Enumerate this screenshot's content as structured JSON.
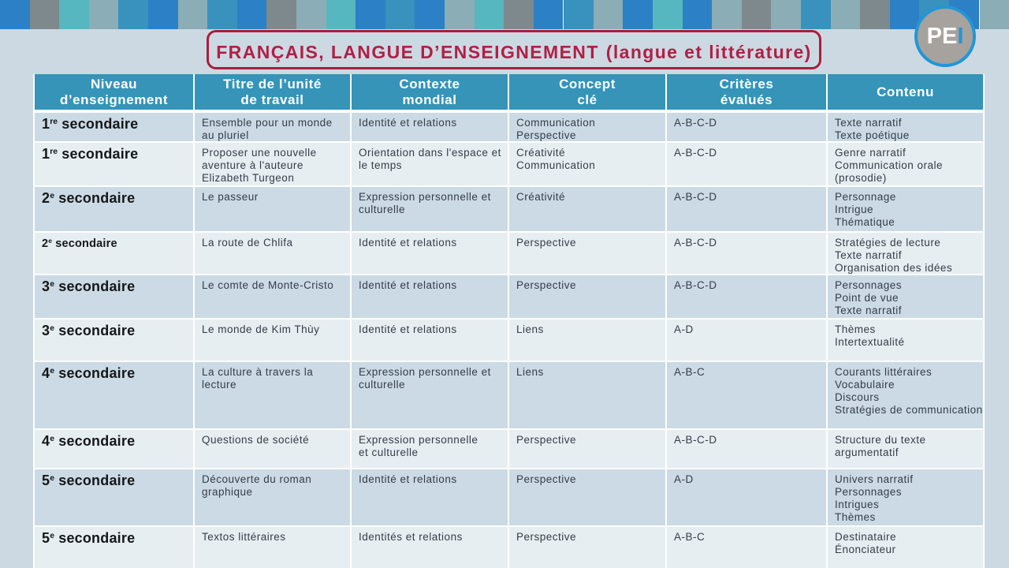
{
  "badge": {
    "pe": "PE",
    "i": "I",
    "circle_color": "#a6a29e",
    "ring_color": "#2196d8"
  },
  "title": {
    "main": "FRANÇAIS, LANGUE D’ENSEIGNEMENT",
    "paren": "(langue et littérature)",
    "text_color": "#b01f46",
    "border_color": "#a81e3e"
  },
  "top_strip": {
    "palette": {
      "blue": "#2b80c6",
      "gray": "#7d898c",
      "teal": "#56b7c0",
      "grayblue": "#8badb5",
      "steel": "#3992bd"
    },
    "squares": [
      "blue",
      "gray",
      "teal",
      "grayblue",
      "steel",
      "blue",
      "grayblue",
      "steel",
      "blue",
      "gray",
      "grayblue",
      "teal",
      "blue",
      "steel",
      "blue",
      "grayblue",
      "teal",
      "gray",
      "blue",
      "steel",
      "grayblue",
      "blue",
      "teal",
      "blue",
      "grayblue",
      "gray",
      "grayblue",
      "steel",
      "grayblue",
      "gray",
      "blue",
      "steel",
      "blue",
      "grayblue"
    ]
  },
  "table": {
    "header_bg": "#3594b8",
    "row_dark_bg": "#cbdae4",
    "row_light_bg": "#e7eef2",
    "headers": [
      {
        "lines": [
          "Niveau",
          "d’enseignement"
        ]
      },
      {
        "lines": [
          "Titre de l’unité",
          "de travail"
        ]
      },
      {
        "lines": [
          "Contexte",
          "mondial"
        ]
      },
      {
        "lines": [
          "Concept",
          "clé"
        ]
      },
      {
        "lines": [
          "Critères",
          "évalués"
        ]
      },
      {
        "lines": [
          "Contenu"
        ]
      }
    ],
    "rows": [
      {
        "niveau": {
          "num": "1",
          "sup": "re",
          "rest": "secondaire",
          "small": false
        },
        "titre": [
          "Ensemble pour un monde",
          "au pluriel"
        ],
        "contexte": [
          "Identité et relations"
        ],
        "concept": [
          "Communication",
          "Perspective"
        ],
        "criteres": [
          "A-B-C-D"
        ],
        "contenu": [
          "Texte narratif",
          "Texte poétique"
        ]
      },
      {
        "niveau": {
          "num": "1",
          "sup": "re",
          "rest": "secondaire",
          "small": false
        },
        "titre": [
          "Proposer une nouvelle",
          "aventure à l'auteure",
          "Elizabeth Turgeon"
        ],
        "contexte": [
          "Orientation dans l'espace et",
          "le temps"
        ],
        "concept": [
          "Créativité",
          "Communication"
        ],
        "criteres": [
          "A-B-C-D"
        ],
        "contenu": [
          "Genre narratif",
          "Communication orale",
          "(prosodie)"
        ]
      },
      {
        "niveau": {
          "num": "2",
          "sup": "e",
          "rest": "secondaire",
          "small": false
        },
        "titre": [
          "Le passeur"
        ],
        "contexte": [
          "Expression personnelle et",
          "culturelle"
        ],
        "concept": [
          "Créativité"
        ],
        "criteres": [
          "A-B-C-D"
        ],
        "contenu": [
          "Personnage",
          "Intrigue",
          "Thématique"
        ]
      },
      {
        "niveau": {
          "num": "2",
          "sup": "e",
          "rest": "secondaire",
          "small": true
        },
        "titre": [
          "La route de Chlifa"
        ],
        "contexte": [
          "Identité et relations"
        ],
        "concept": [
          "Perspective"
        ],
        "criteres": [
          "A-B-C-D"
        ],
        "contenu": [
          "Stratégies de lecture",
          "Texte narratif",
          "Organisation des idées"
        ]
      },
      {
        "niveau": {
          "num": "3",
          "sup": "e",
          "rest": "secondaire",
          "small": false
        },
        "titre": [
          "Le comte de Monte-Cristo"
        ],
        "contexte": [
          "Identité et relations"
        ],
        "concept": [
          "Perspective"
        ],
        "criteres": [
          "A-B-C-D"
        ],
        "contenu": [
          "Personnages",
          "Point de vue",
          "Texte narratif"
        ]
      },
      {
        "niveau": {
          "num": "3",
          "sup": "e",
          "rest": "secondaire",
          "small": false
        },
        "titre": [
          "Le monde de Kim Thùy"
        ],
        "contexte": [
          "Identité et relations"
        ],
        "concept": [
          "Liens"
        ],
        "criteres": [
          "A-D"
        ],
        "contenu": [
          "Thèmes",
          "Intertextualité"
        ]
      },
      {
        "niveau": {
          "num": "4",
          "sup": "e",
          "rest": "secondaire",
          "small": false
        },
        "titre": [
          "La culture à travers la",
          "lecture"
        ],
        "contexte": [
          "Expression personnelle et",
          "culturelle"
        ],
        "concept": [
          "Liens"
        ],
        "criteres": [
          "A-B-C"
        ],
        "contenu": [
          "Courants littéraires",
          "Vocabulaire",
          "Discours",
          "Stratégies de communication"
        ]
      },
      {
        "niveau": {
          "num": "4",
          "sup": "e",
          "rest": "secondaire",
          "small": false
        },
        "titre": [
          "Questions de société"
        ],
        "contexte": [
          "Expression personnelle",
          "et culturelle"
        ],
        "concept": [
          "Perspective"
        ],
        "criteres": [
          "A-B-C-D"
        ],
        "contenu": [
          "Structure du texte",
          "argumentatif"
        ]
      },
      {
        "niveau": {
          "num": "5",
          "sup": "e",
          "rest": "secondaire",
          "small": false
        },
        "titre": [
          "Découverte du roman",
          "graphique"
        ],
        "contexte": [
          "Identité et relations"
        ],
        "concept": [
          "Perspective"
        ],
        "criteres": [
          "A-D"
        ],
        "contenu": [
          "Univers narratif",
          "Personnages",
          "Intrigues",
          "Thèmes"
        ]
      },
      {
        "niveau": {
          "num": "5",
          "sup": "e",
          "rest": "secondaire",
          "small": false
        },
        "titre": [
          "Textos littéraires"
        ],
        "contexte": [
          "Identités et relations"
        ],
        "concept": [
          "Perspective"
        ],
        "criteres": [
          "A-B-C"
        ],
        "contenu": [
          "Destinataire",
          "Énonciateur"
        ]
      }
    ]
  }
}
